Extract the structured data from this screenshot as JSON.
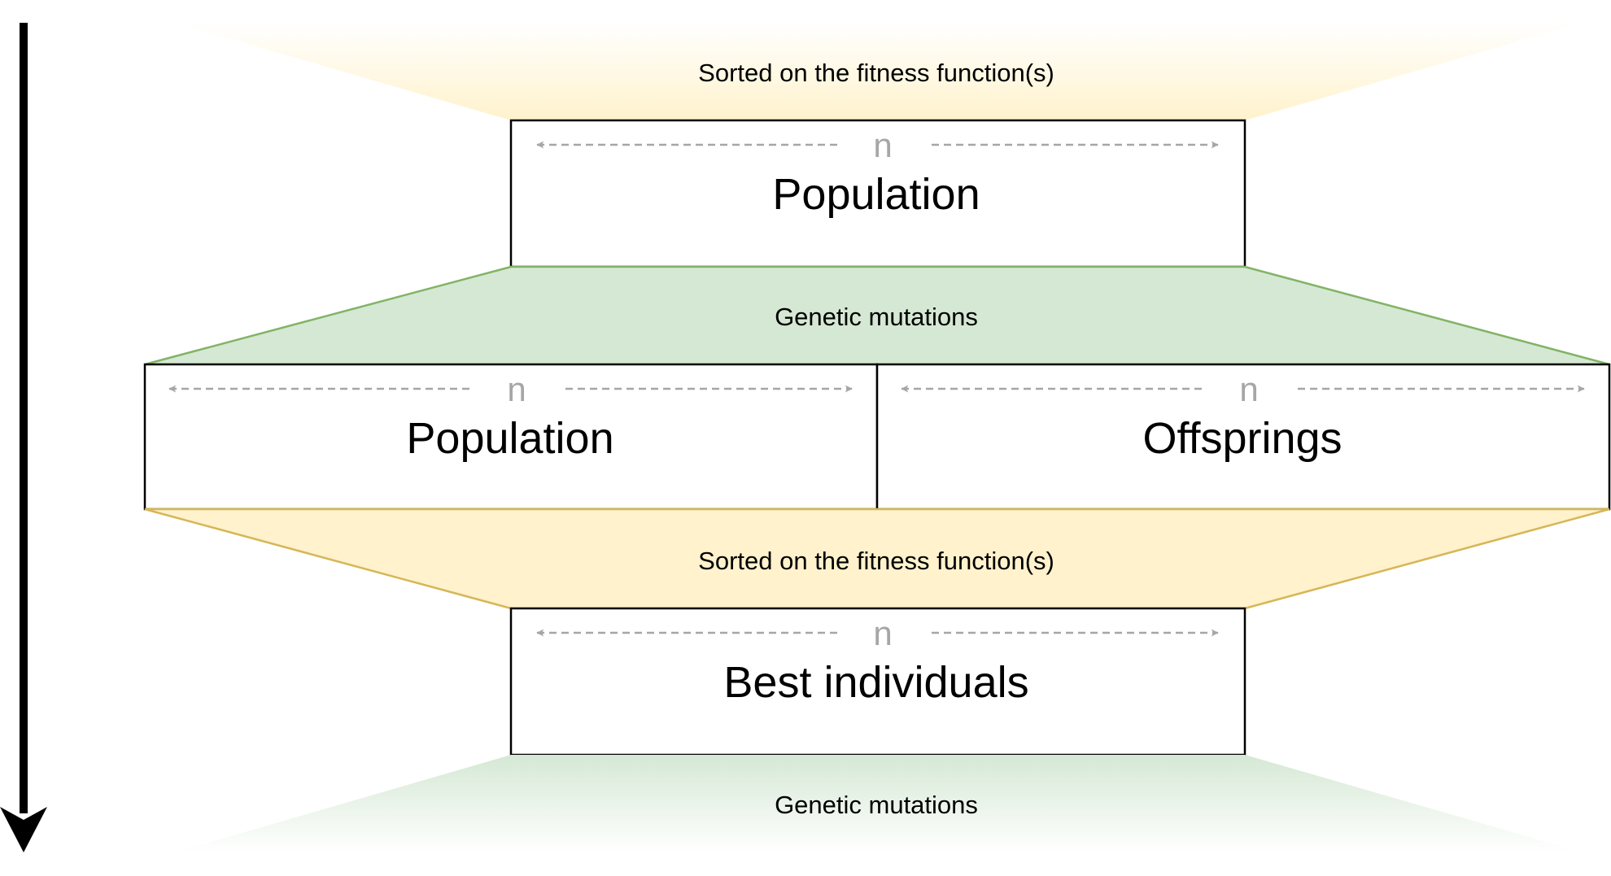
{
  "colors": {
    "sort_fill": "#fff2cc",
    "sort_stroke": "#d6b656",
    "mutation_fill": "#d5e8d4",
    "mutation_stroke": "#82b366",
    "arrow": "#000000",
    "dim_arrow": "#a6a6a6"
  },
  "stages": {
    "top_fade_label": "Sorted on the fitness function(s)",
    "population_top": {
      "n_label": "n",
      "label": "Population"
    },
    "mutation_band_label": "Genetic mutations",
    "population_left": {
      "n_label": "n",
      "label": "Population"
    },
    "offsprings": {
      "n_label": "n",
      "label": "Offsprings"
    },
    "sort_band_label": "Sorted on the fitness function(s)",
    "best_individuals": {
      "n_label": "n",
      "label": "Best individuals"
    },
    "bottom_fade_label": "Genetic mutations"
  },
  "icons": {
    "time_arrow": "arrow-down-icon",
    "dimension_arrows": "double-arrow-icon"
  }
}
